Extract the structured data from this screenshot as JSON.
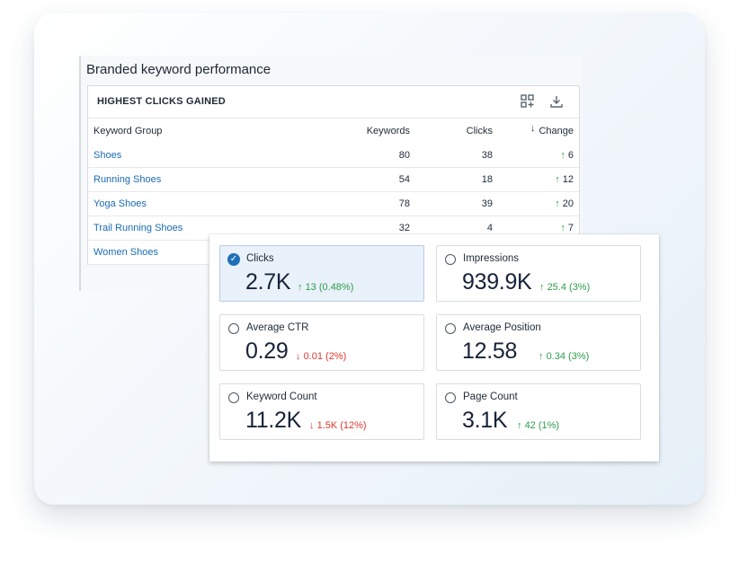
{
  "title": "Branded keyword performance",
  "table_card": {
    "title": "HIGHEST CLICKS GAINED",
    "icons": [
      "grid-add-icon",
      "download-icon"
    ],
    "columns": {
      "keyword_group": "Keyword Group",
      "keywords": "Keywords",
      "clicks": "Clicks",
      "change": "Change",
      "sort_arrow": "↓"
    },
    "rows": [
      {
        "group": "Shoes",
        "keywords": "80",
        "clicks": "38",
        "change": "6",
        "arrow": "↑"
      },
      {
        "group": "Running Shoes",
        "keywords": "54",
        "clicks": "18",
        "change": "12",
        "arrow": "↑"
      },
      {
        "group": "Yoga Shoes",
        "keywords": "78",
        "clicks": "39",
        "change": "20",
        "arrow": "↑"
      },
      {
        "group": "Trail Running Shoes",
        "keywords": "32",
        "clicks": "4",
        "change": "7",
        "arrow": "↑"
      },
      {
        "group": "Women Shoes",
        "keywords": "",
        "clicks": "",
        "change": "",
        "arrow": ""
      }
    ]
  },
  "metrics": [
    {
      "label": "Clicks",
      "value": "2.7K",
      "change": "13 (0.48%)",
      "direction": "up",
      "arrow": "↑",
      "selected": true
    },
    {
      "label": "Impressions",
      "value": "939.9K",
      "change": "25.4 (3%)",
      "direction": "up",
      "arrow": "↑",
      "selected": false
    },
    {
      "label": "Average CTR",
      "value": "0.29",
      "change": "0.01 (2%)",
      "direction": "down",
      "arrow": "↓",
      "selected": false
    },
    {
      "label": "Average Position",
      "value": "12.58",
      "change": "0.34 (3%)",
      "direction": "up",
      "arrow": "↑",
      "selected": false
    },
    {
      "label": "Keyword Count",
      "value": "11.2K",
      "change": "1.5K (12%)",
      "direction": "down",
      "arrow": "↓",
      "selected": false
    },
    {
      "label": "Page Count",
      "value": "3.1K",
      "change": "42 (1%)",
      "direction": "up",
      "arrow": "↑",
      "selected": false
    }
  ],
  "colors": {
    "link": "#1a6bb3",
    "up": "#2e9d4a",
    "down": "#e0372e",
    "selected_bg": "#e9f1fa",
    "check": "#1f6fb8"
  },
  "check_glyph": "✓"
}
